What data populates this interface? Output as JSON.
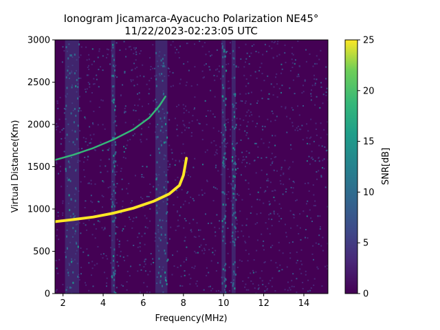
{
  "chart_data": {
    "type": "heatmap",
    "title_line1": "Ionogram Jicamarca-Ayacucho Polarization NE45°",
    "title_line2": "11/22/2023-02:23:05 UTC",
    "xlabel": "Frequency(MHz)",
    "ylabel": "Virtual Distance(Km)",
    "xlim": [
      1.6,
      15.2
    ],
    "ylim": [
      0,
      3000
    ],
    "x_ticks": [
      2,
      4,
      6,
      8,
      10,
      12,
      14
    ],
    "y_ticks": [
      0,
      500,
      1000,
      1500,
      2000,
      2500,
      3000
    ],
    "grid": false,
    "colorbar": {
      "label": "SNR[dB]",
      "range": [
        0,
        25
      ],
      "ticks": [
        0,
        5,
        10,
        15,
        20,
        25
      ],
      "colormap": "viridis"
    },
    "traces": [
      {
        "description_key": "primary echo trace",
        "snr_db": 25,
        "points": [
          [
            1.6,
            850
          ],
          [
            2.5,
            875
          ],
          [
            3.5,
            905
          ],
          [
            4.5,
            950
          ],
          [
            5.5,
            1010
          ],
          [
            6.5,
            1090
          ],
          [
            7.3,
            1180
          ],
          [
            7.8,
            1280
          ],
          [
            8.0,
            1400
          ],
          [
            8.1,
            1530
          ],
          [
            8.15,
            1600
          ]
        ]
      },
      {
        "description_key": "second-hop trace",
        "snr_db": 18,
        "points": [
          [
            1.6,
            1580
          ],
          [
            2.5,
            1640
          ],
          [
            3.5,
            1720
          ],
          [
            4.5,
            1820
          ],
          [
            5.5,
            1940
          ],
          [
            6.3,
            2080
          ],
          [
            6.8,
            2220
          ],
          [
            7.1,
            2330
          ]
        ]
      }
    ],
    "interference_bands_mhz": [
      [
        2.1,
        2.8
      ],
      [
        4.4,
        4.6
      ],
      [
        6.6,
        7.2
      ],
      [
        9.9,
        10.1
      ],
      [
        10.4,
        10.6
      ]
    ]
  }
}
